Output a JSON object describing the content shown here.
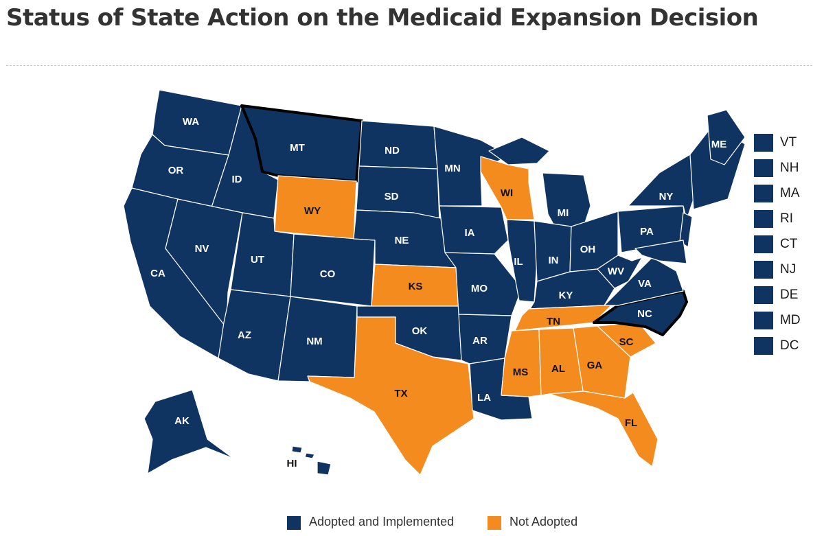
{
  "title": "Status of State Action on the Medicaid Expansion Decision",
  "colors": {
    "adopted": "#0f3461",
    "not_adopted": "#f38b1f",
    "highlight_border": "#000000"
  },
  "legend": {
    "adopted": "Adopted and Implemented",
    "not_adopted": "Not Adopted"
  },
  "map": {
    "highlighted_states": [
      "MT",
      "NC"
    ],
    "not_adopted_states": [
      "WY",
      "WI",
      "KS",
      "TX",
      "TN",
      "MS",
      "AL",
      "GA",
      "SC",
      "FL"
    ],
    "state_labels": {
      "WA": "WA",
      "OR": "OR",
      "CA": "CA",
      "ID": "ID",
      "NV": "NV",
      "MT": "MT",
      "WY": "WY",
      "UT": "UT",
      "AZ": "AZ",
      "CO": "CO",
      "NM": "NM",
      "ND": "ND",
      "SD": "SD",
      "NE": "NE",
      "KS": "KS",
      "OK": "OK",
      "TX": "TX",
      "MN": "MN",
      "IA": "IA",
      "MO": "MO",
      "AR": "AR",
      "LA": "LA",
      "WI": "WI",
      "IL": "IL",
      "MS": "MS",
      "MI": "MI",
      "IN": "IN",
      "KY": "KY",
      "TN": "TN",
      "AL": "AL",
      "OH": "OH",
      "WV": "WV",
      "VA": "VA",
      "NC": "NC",
      "SC": "SC",
      "GA": "GA",
      "FL": "FL",
      "PA": "PA",
      "NY": "NY",
      "ME": "ME",
      "AK": "AK",
      "HI": "HI"
    },
    "side_list": [
      "VT",
      "NH",
      "MA",
      "RI",
      "CT",
      "NJ",
      "DE",
      "MD",
      "DC"
    ]
  }
}
